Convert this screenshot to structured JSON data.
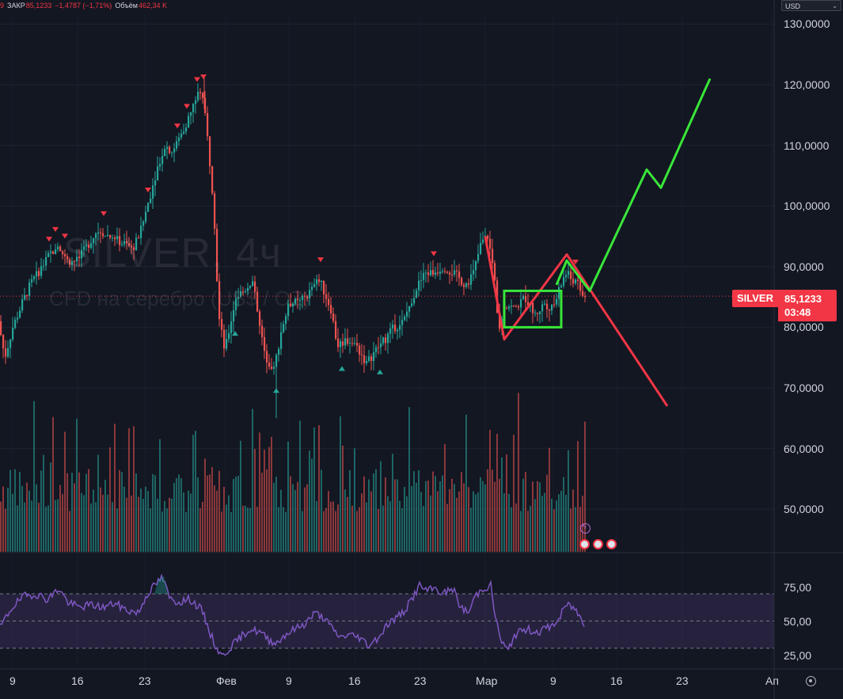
{
  "header": {
    "prefix": "9",
    "close_label": "ЗАКР",
    "close_value": "85,1233",
    "change_value": "−1,4787 (−1,71%)",
    "volume_label": "Объём",
    "volume_value": "462,34 K",
    "currency": "USD",
    "colors": {
      "down": "#f23645",
      "label": "#d1d4dc"
    }
  },
  "watermark": {
    "symbol_line": "SILVER, 4ч",
    "desc_line": "CFD на серебро (US$ / OZ)"
  },
  "price_badge": {
    "symbol": "SILVER",
    "price": "85,1233",
    "countdown": "03:48",
    "color": "#f23645"
  },
  "chart_data": [
    {
      "type": "candlestick",
      "title": "",
      "x_tick_labels": [
        "9",
        "16",
        "23",
        "Фев",
        "9",
        "16",
        "23",
        "Мар",
        "9",
        "16",
        "23",
        "Ап"
      ],
      "y_tick_labels": [
        "130,0000",
        "120,0000",
        "110,0000",
        "100,0000",
        "90,0000",
        "80,0000",
        "70,0000",
        "60,0000",
        "50,0000"
      ],
      "ylim": [
        43.5,
        134.5
      ],
      "grid": true,
      "up_color": "#26a69a",
      "down_color": "#ef5350",
      "last_price": 85.1233,
      "price_path_keypoints": [
        [
          0,
          81
        ],
        [
          8,
          75
        ],
        [
          18,
          80
        ],
        [
          30,
          84
        ],
        [
          40,
          87
        ],
        [
          55,
          90
        ],
        [
          65,
          92
        ],
        [
          75,
          94
        ],
        [
          85,
          91
        ],
        [
          100,
          91
        ],
        [
          115,
          94
        ],
        [
          125,
          96
        ],
        [
          140,
          95
        ],
        [
          155,
          94
        ],
        [
          170,
          93
        ],
        [
          180,
          96
        ],
        [
          190,
          101
        ],
        [
          200,
          106
        ],
        [
          210,
          110
        ],
        [
          220,
          109
        ],
        [
          235,
          113
        ],
        [
          245,
          116
        ],
        [
          252,
          119
        ],
        [
          258,
          118
        ],
        [
          265,
          110
        ],
        [
          272,
          100
        ],
        [
          278,
          82
        ],
        [
          286,
          76
        ],
        [
          292,
          80
        ],
        [
          300,
          85
        ],
        [
          310,
          86
        ],
        [
          322,
          88
        ],
        [
          330,
          80
        ],
        [
          338,
          75
        ],
        [
          348,
          73
        ],
        [
          358,
          80
        ],
        [
          368,
          84
        ],
        [
          380,
          84
        ],
        [
          395,
          86
        ],
        [
          405,
          88
        ],
        [
          420,
          83
        ],
        [
          428,
          77
        ],
        [
          440,
          78
        ],
        [
          452,
          77
        ],
        [
          465,
          74
        ],
        [
          475,
          76
        ],
        [
          488,
          78
        ],
        [
          500,
          80
        ],
        [
          512,
          81
        ],
        [
          520,
          84
        ],
        [
          530,
          87
        ],
        [
          540,
          89
        ],
        [
          550,
          89
        ],
        [
          562,
          90
        ],
        [
          575,
          89
        ],
        [
          590,
          87
        ],
        [
          600,
          89
        ],
        [
          610,
          94
        ],
        [
          618,
          95
        ],
        [
          626,
          89
        ],
        [
          632,
          80
        ],
        [
          640,
          84
        ],
        [
          652,
          83
        ],
        [
          665,
          85
        ],
        [
          678,
          82
        ],
        [
          690,
          84
        ],
        [
          700,
          83
        ],
        [
          708,
          86
        ],
        [
          716,
          89
        ],
        [
          724,
          88
        ],
        [
          732,
          87
        ],
        [
          738,
          85.1
        ]
      ],
      "volume_note": "volume histogram under candles",
      "markers": {
        "down_arrows_x": [
          62,
          70,
          82,
          131,
          187,
          224,
          236,
          249,
          257,
          405,
          548,
          727
        ],
        "up_arrows_x": [
          297,
          349,
          432,
          480
        ]
      },
      "drawings": [
        {
          "kind": "polyline",
          "color": "#f23645",
          "points": [
            [
              613,
              95
            ],
            [
              637,
              78
            ],
            [
              716,
              92
            ],
            [
              843,
              67
            ]
          ]
        },
        {
          "kind": "polyline",
          "color": "#39e639",
          "points": [
            [
              703,
              87
            ],
            [
              716,
              91
            ],
            [
              745,
              86
            ],
            [
              817,
              106
            ],
            [
              835,
              103
            ],
            [
              897,
              121
            ]
          ]
        },
        {
          "kind": "rectangle",
          "color": "#39e639",
          "from": [
            637,
            86
          ],
          "to": [
            709,
            80
          ]
        }
      ]
    },
    {
      "type": "line",
      "title": "",
      "indicator": "RSI",
      "y_tick_labels": [
        "75,00",
        "50,00",
        "25,00"
      ],
      "ylim": [
        20,
        90
      ],
      "band": [
        30,
        70
      ],
      "line_color": "#7e57c2",
      "band_color": "#7e57c2",
      "rsi_keypoints": [
        [
          0,
          45
        ],
        [
          15,
          60
        ],
        [
          30,
          68
        ],
        [
          45,
          70
        ],
        [
          60,
          66
        ],
        [
          75,
          74
        ],
        [
          85,
          64
        ],
        [
          100,
          60
        ],
        [
          115,
          62
        ],
        [
          130,
          60
        ],
        [
          145,
          63
        ],
        [
          160,
          58
        ],
        [
          175,
          56
        ],
        [
          185,
          69
        ],
        [
          195,
          76
        ],
        [
          205,
          82
        ],
        [
          215,
          66
        ],
        [
          225,
          64
        ],
        [
          240,
          66
        ],
        [
          255,
          58
        ],
        [
          265,
          42
        ],
        [
          272,
          32
        ],
        [
          280,
          24
        ],
        [
          290,
          30
        ],
        [
          300,
          36
        ],
        [
          315,
          44
        ],
        [
          328,
          42
        ],
        [
          340,
          36
        ],
        [
          350,
          34
        ],
        [
          360,
          40
        ],
        [
          372,
          44
        ],
        [
          385,
          48
        ],
        [
          398,
          56
        ],
        [
          410,
          52
        ],
        [
          420,
          44
        ],
        [
          430,
          38
        ],
        [
          440,
          40
        ],
        [
          455,
          38
        ],
        [
          465,
          32
        ],
        [
          478,
          38
        ],
        [
          490,
          48
        ],
        [
          500,
          52
        ],
        [
          512,
          58
        ],
        [
          520,
          66
        ],
        [
          530,
          76
        ],
        [
          540,
          72
        ],
        [
          550,
          74
        ],
        [
          560,
          70
        ],
        [
          572,
          74
        ],
        [
          582,
          60
        ],
        [
          592,
          56
        ],
        [
          600,
          68
        ],
        [
          610,
          74
        ],
        [
          620,
          76
        ],
        [
          626,
          52
        ],
        [
          634,
          34
        ],
        [
          642,
          28
        ],
        [
          650,
          40
        ],
        [
          665,
          44
        ],
        [
          680,
          42
        ],
        [
          695,
          46
        ],
        [
          705,
          50
        ],
        [
          715,
          62
        ],
        [
          725,
          60
        ],
        [
          738,
          48
        ]
      ]
    }
  ]
}
